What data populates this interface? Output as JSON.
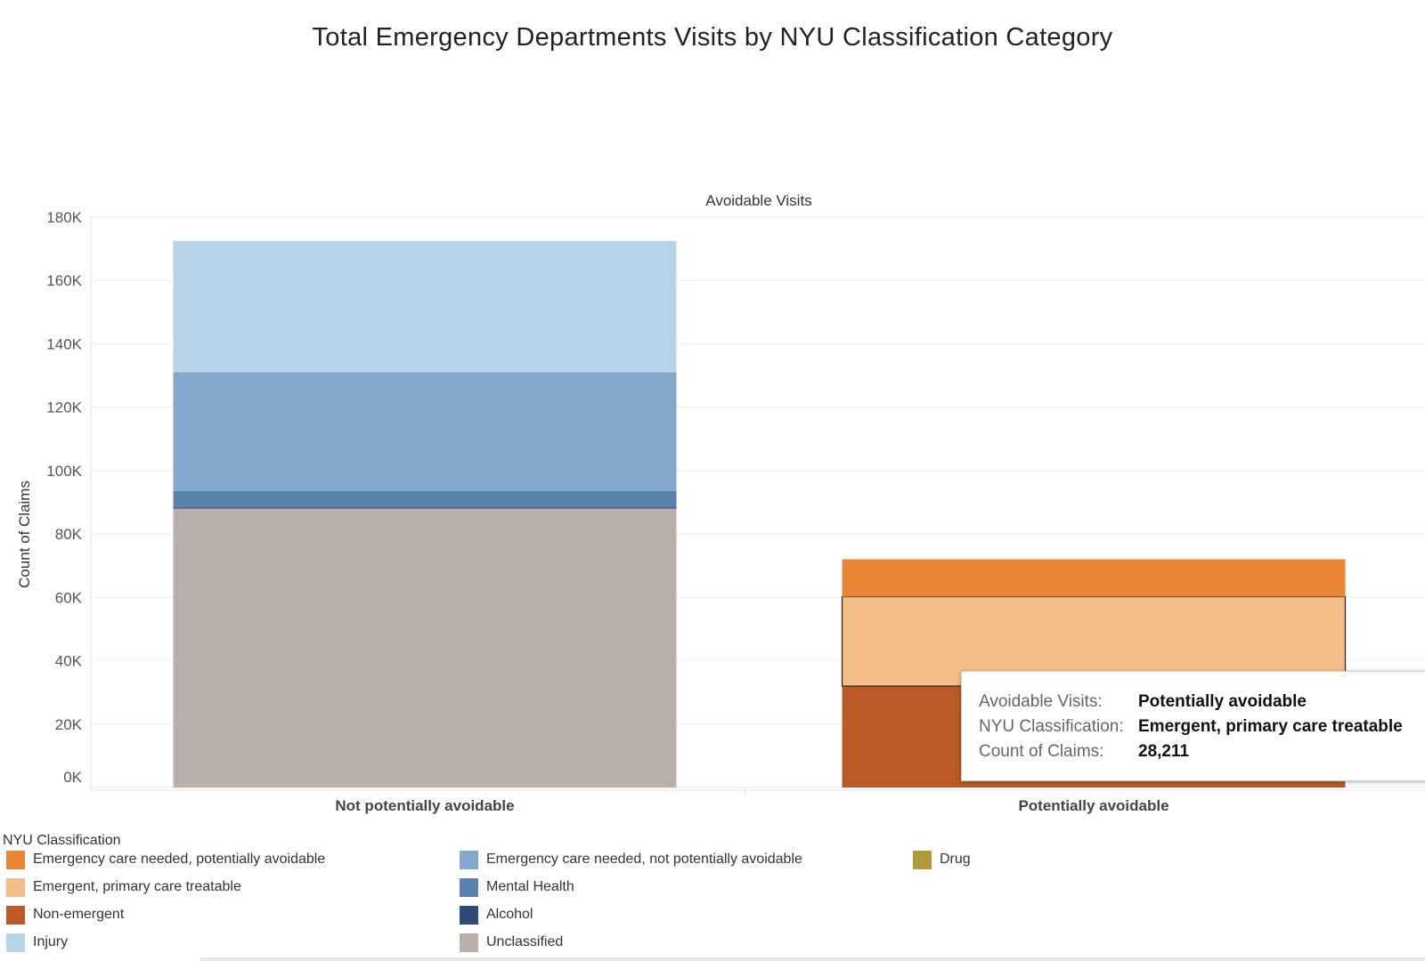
{
  "title": "Total Emergency Departments Visits by NYU Classification Category",
  "chart_data": {
    "type": "bar",
    "stacked": true,
    "title": "Total Emergency Departments Visits by NYU Classification Category",
    "column_header": "Avoidable Visits",
    "xlabel": "",
    "ylabel": "Count of Claims",
    "ylim": [
      0,
      180000
    ],
    "yticks": [
      0,
      20000,
      40000,
      60000,
      80000,
      100000,
      120000,
      140000,
      160000,
      180000
    ],
    "ytick_labels": [
      "0K",
      "20K",
      "40K",
      "60K",
      "80K",
      "100K",
      "120K",
      "140K",
      "160K",
      "180K"
    ],
    "grid": true,
    "categories": [
      "Not potentially avoidable",
      "Potentially avoidable"
    ],
    "series": [
      {
        "name": "Unclassified",
        "color": "#b9b0ac",
        "values": [
          88000,
          0
        ]
      },
      {
        "name": "Alcohol",
        "color": "#2e4a78",
        "values": [
          400,
          0
        ]
      },
      {
        "name": "Mental Health",
        "color": "#5b82aa",
        "values": [
          5200,
          0
        ]
      },
      {
        "name": "Emergency care needed, not potentially avoidable",
        "color": "#84a8cb",
        "values": [
          37400,
          0
        ]
      },
      {
        "name": "Injury",
        "color": "#b7d5e9",
        "values": [
          41500,
          0
        ]
      },
      {
        "name": "Non-emergent",
        "color": "#bb5a24",
        "values": [
          0,
          32000
        ]
      },
      {
        "name": "Emergent, primary care treatable",
        "color": "#f5bd87",
        "values": [
          0,
          28211
        ]
      },
      {
        "name": "Emergency care needed, potentially avoidable",
        "color": "#ec8535",
        "values": [
          0,
          11800
        ]
      },
      {
        "name": "Drug",
        "color": "#b19a3d",
        "values": [
          0,
          0
        ]
      }
    ],
    "highlighted": {
      "category": "Potentially avoidable",
      "series": "Emergent, primary care treatable"
    }
  },
  "legend": {
    "title": "NYU Classification",
    "items": [
      {
        "label": "Emergency care needed, potentially avoidable",
        "color": "#ec8535"
      },
      {
        "label": "Emergent, primary care treatable",
        "color": "#f5bd87"
      },
      {
        "label": "Non-emergent",
        "color": "#bb5a24"
      },
      {
        "label": "Injury",
        "color": "#b7d5e9"
      },
      {
        "label": "Emergency care needed, not potentially avoidable",
        "color": "#84a8cb"
      },
      {
        "label": "Mental Health",
        "color": "#5b82aa"
      },
      {
        "label": "Alcohol",
        "color": "#2e4a78"
      },
      {
        "label": "Unclassified",
        "color": "#b9b0ac"
      },
      {
        "label": "Drug",
        "color": "#b19a3d"
      }
    ]
  },
  "tooltip": {
    "rows": [
      {
        "key": "Avoidable Visits:",
        "value": "Potentially avoidable"
      },
      {
        "key": "NYU Classification:",
        "value": "Emergent, primary care treatable"
      },
      {
        "key": "Count of Claims:",
        "value": "28,211"
      }
    ]
  }
}
